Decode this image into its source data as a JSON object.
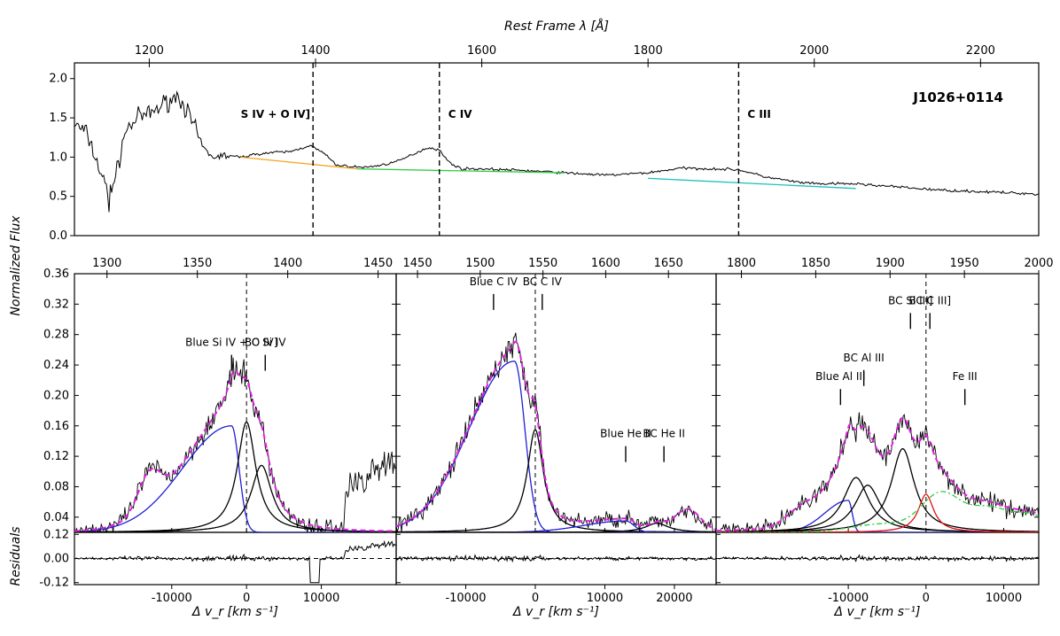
{
  "chart_data": [
    {
      "type": "line",
      "panel": "top-spectrum",
      "target": "J1026+0114",
      "xlabel": "Rest Frame λ [Å]",
      "ylabel": "Normalized Flux",
      "xlim": [
        1110,
        2270
      ],
      "ylim": [
        0.0,
        2.2
      ],
      "xticks": [
        1200,
        1400,
        1600,
        1800,
        2000,
        2200
      ],
      "yticks": [
        "0.0",
        "0.5",
        "1.0",
        "1.5",
        "2.0"
      ],
      "region_markers": [
        {
          "label": "S IV + O IV]",
          "x": 1397
        },
        {
          "label": "C IV",
          "x": 1549
        },
        {
          "label": "C III",
          "x": 1909
        }
      ],
      "spectrum_nodes": [
        [
          1110,
          1.42
        ],
        [
          1125,
          1.3
        ],
        [
          1140,
          0.85
        ],
        [
          1150,
          0.55
        ],
        [
          1160,
          0.75
        ],
        [
          1170,
          1.3
        ],
        [
          1185,
          1.5
        ],
        [
          1200,
          1.55
        ],
        [
          1210,
          1.62
        ],
        [
          1220,
          1.7
        ],
        [
          1235,
          1.78
        ],
        [
          1245,
          1.6
        ],
        [
          1258,
          1.28
        ],
        [
          1265,
          1.12
        ],
        [
          1275,
          1.0
        ],
        [
          1290,
          1.02
        ],
        [
          1310,
          1.0
        ],
        [
          1330,
          1.04
        ],
        [
          1350,
          1.06
        ],
        [
          1370,
          1.07
        ],
        [
          1385,
          1.12
        ],
        [
          1393,
          1.15
        ],
        [
          1410,
          1.05
        ],
        [
          1425,
          0.9
        ],
        [
          1440,
          0.88
        ],
        [
          1460,
          0.87
        ],
        [
          1480,
          0.9
        ],
        [
          1500,
          0.95
        ],
        [
          1520,
          1.05
        ],
        [
          1535,
          1.12
        ],
        [
          1548,
          1.1
        ],
        [
          1560,
          0.94
        ],
        [
          1575,
          0.85
        ],
        [
          1600,
          0.85
        ],
        [
          1650,
          0.83
        ],
        [
          1700,
          0.8
        ],
        [
          1750,
          0.77
        ],
        [
          1800,
          0.8
        ],
        [
          1840,
          0.86
        ],
        [
          1880,
          0.85
        ],
        [
          1909,
          0.84
        ],
        [
          1940,
          0.75
        ],
        [
          1980,
          0.68
        ],
        [
          2000,
          0.66
        ],
        [
          2050,
          0.66
        ],
        [
          2100,
          0.62
        ],
        [
          2150,
          0.58
        ],
        [
          2200,
          0.56
        ],
        [
          2270,
          0.53
        ]
      ],
      "continuum": [
        {
          "color": "#f5a623",
          "points": [
            [
              1310,
              1.0
            ],
            [
              1450,
              0.85
            ]
          ]
        },
        {
          "color": "#2ecc40",
          "points": [
            [
              1450,
              0.85
            ],
            [
              1700,
              0.8
            ]
          ]
        },
        {
          "color": "#20c0c0",
          "points": [
            [
              1800,
              0.73
            ],
            [
              2050,
              0.6
            ]
          ]
        }
      ]
    },
    {
      "type": "line",
      "panel": "SiIV-OIV",
      "top_xlabel": "Rest Frame λ [Å]",
      "top_xticks": [
        1300,
        1350,
        1400,
        1450
      ],
      "top_xlim": [
        1282,
        1460
      ],
      "xlabel": "Δ v_r [km s^-1]",
      "xlim": [
        -23000,
        20000
      ],
      "xticks": [
        -10000,
        0,
        10000
      ],
      "ylim": [
        0.02,
        0.36
      ],
      "yticks": [
        "0.04",
        "0.08",
        "0.12",
        "0.16",
        "0.20",
        "0.24",
        "0.28",
        "0.32",
        "0.36"
      ],
      "annotations": [
        {
          "label": "Blue Si IV + O IV]",
          "x": -2000,
          "y": 0.265
        },
        {
          "label": "BC Si IV",
          "x": 2500,
          "y": 0.265
        }
      ],
      "components": [
        {
          "name": "Blue Si IV + O IV]",
          "color": "#1f1fd6",
          "shape": "skew",
          "center": -2000,
          "amp": 0.14,
          "sigma_left": 6500,
          "sigma_right": 1000
        },
        {
          "name": "BC Si IV 1",
          "color": "#000000",
          "shape": "lorentz",
          "center": 0,
          "amp": 0.145,
          "hwhm": 1500
        },
        {
          "name": "BC Si IV 2",
          "color": "#000000",
          "shape": "lorentz",
          "center": 2000,
          "amp": 0.088,
          "hwhm": 1700
        }
      ],
      "fit": {
        "color": "#e020e0",
        "style": "dashed"
      },
      "residuals": {
        "ylabel": "Residuals",
        "yticks": [
          "-0.12",
          "0.00",
          "0.12"
        ],
        "ylim": [
          -0.13,
          0.13
        ]
      }
    },
    {
      "type": "line",
      "panel": "CIV",
      "top_xticks": [
        1450,
        1500,
        1550,
        1600,
        1650
      ],
      "top_xlim": [
        1433,
        1688
      ],
      "xlabel": "Δ v_r [km s^-1]",
      "xlim": [
        -20000,
        26000
      ],
      "xticks": [
        -10000,
        0,
        10000,
        20000
      ],
      "ylim": [
        0.02,
        0.36
      ],
      "annotations": [
        {
          "label": "Blue C IV",
          "x": -6000,
          "y": 0.345
        },
        {
          "label": "BC C IV",
          "x": 1000,
          "y": 0.345
        },
        {
          "label": "Blue He II",
          "x": 13000,
          "y": 0.145
        },
        {
          "label": "BC He II",
          "x": 18500,
          "y": 0.145
        }
      ],
      "components": [
        {
          "name": "Blue C IV",
          "color": "#1f1fd6",
          "shape": "skew",
          "center": -3000,
          "amp": 0.225,
          "sigma_left": 6500,
          "sigma_right": 1500
        },
        {
          "name": "BC C IV",
          "color": "#000000",
          "shape": "lorentz",
          "center": 0,
          "amp": 0.135,
          "hwhm": 1400
        },
        {
          "name": "Blue He II",
          "color": "#1f1fd6",
          "shape": "skew",
          "center": 13000,
          "amp": 0.015,
          "sigma_left": 6000,
          "sigma_right": 1200
        },
        {
          "name": "BC He II",
          "color": "#000000",
          "shape": "lorentz",
          "center": 17500,
          "amp": 0.012,
          "hwhm": 2000
        }
      ],
      "fit": {
        "color": "#e020e0",
        "style": "dashed"
      },
      "residuals": {
        "yticks": [
          "-0.12",
          "0.00",
          "0.12"
        ],
        "ylim": [
          -0.13,
          0.13
        ]
      }
    },
    {
      "type": "line",
      "panel": "CIII-blend",
      "top_xticks": [
        1800,
        1850,
        1900,
        1950,
        2000
      ],
      "top_xlim": [
        1783,
        2000
      ],
      "xlabel": "Δ v_r [km s^-1]",
      "xlim": [
        -27000,
        14500
      ],
      "xticks": [
        -10000,
        0,
        10000
      ],
      "ylim": [
        0.02,
        0.36
      ],
      "annotations": [
        {
          "label": "Blue Al III",
          "x": -11000,
          "y": 0.22
        },
        {
          "label": "BC Al III",
          "x": -8000,
          "y": 0.245
        },
        {
          "label": "BC Si III]",
          "x": -2000,
          "y": 0.32
        },
        {
          "label": "BC C III]",
          "x": 500,
          "y": 0.32
        },
        {
          "label": "Fe III",
          "x": 5000,
          "y": 0.22
        }
      ],
      "components": [
        {
          "name": "Blue Al III",
          "color": "#1f1fd6",
          "shape": "skew",
          "center": -10000,
          "amp": 0.042,
          "sigma_left": 3000,
          "sigma_right": 500
        },
        {
          "name": "BC Al III 1",
          "color": "#000000",
          "shape": "lorentz",
          "center": -9000,
          "amp": 0.072,
          "hwhm": 2000
        },
        {
          "name": "BC Al III 2",
          "color": "#000000",
          "shape": "lorentz",
          "center": -7500,
          "amp": 0.062,
          "hwhm": 2000
        },
        {
          "name": "BC Si III]",
          "color": "#000000",
          "shape": "lorentz",
          "center": -3000,
          "amp": 0.11,
          "hwhm": 1800
        },
        {
          "name": "BC C III]",
          "color": "#e01010",
          "shape": "lorentz",
          "center": 0,
          "amp": 0.05,
          "hwhm": 1200
        },
        {
          "name": "Fe III",
          "color": "#2ecc40",
          "shape": "multi",
          "dash": "6 3 2 3",
          "peaks": [
            [
              -8000,
              0.005,
              3500
            ],
            [
              -4000,
              0.008,
              3500
            ],
            [
              2000,
              0.05,
              2500
            ],
            [
              8000,
              0.03,
              2500
            ],
            [
              13500,
              0.022,
              2500
            ]
          ]
        }
      ],
      "fit": {
        "color": "#e020e0",
        "style": "dashed"
      },
      "residuals": {
        "yticks": [
          "-0.12",
          "0.00",
          "0.12"
        ],
        "ylim": [
          -0.13,
          0.13
        ]
      }
    }
  ]
}
